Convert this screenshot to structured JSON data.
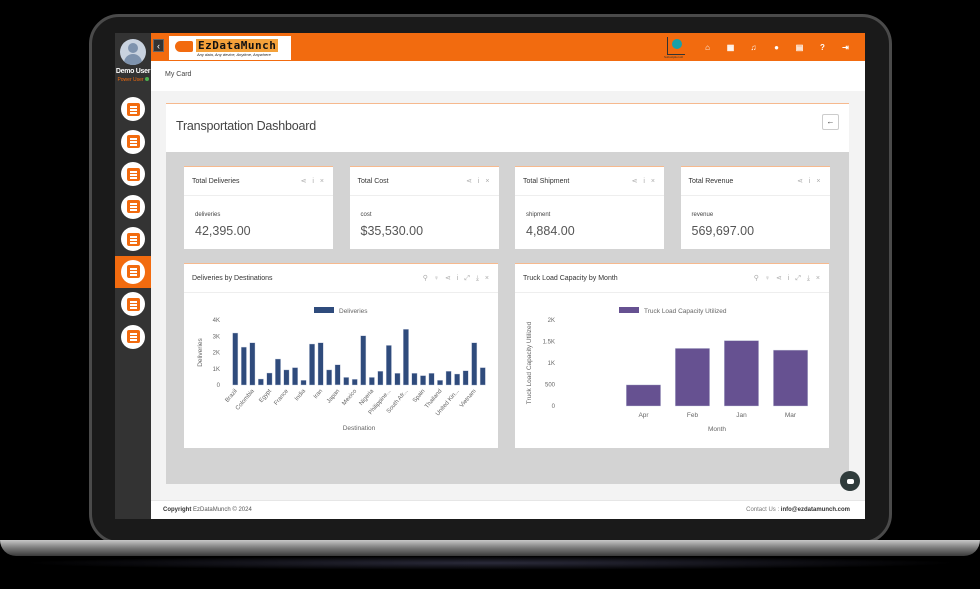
{
  "user": {
    "name": "Demo User",
    "role": "Power User",
    "status_color": "#4caf50"
  },
  "brand": {
    "logo_word": "EzDataMunch",
    "tagline": "Any data, Any device, Anytime, Anywhere",
    "accent": "#f26b0f",
    "partner_logo_text": "Subsciption AI"
  },
  "sidebar": {
    "items": [
      {
        "name": "sidebar-item-data-sources",
        "icon": "database-icon",
        "active": false
      },
      {
        "name": "sidebar-item-analysis",
        "icon": "magnifier-chart-icon",
        "active": false
      },
      {
        "name": "sidebar-item-reports",
        "icon": "report-grid-icon",
        "active": false
      },
      {
        "name": "sidebar-item-designer",
        "icon": "layout-icon",
        "active": false
      },
      {
        "name": "sidebar-item-tables",
        "icon": "table-icon",
        "active": false
      },
      {
        "name": "sidebar-item-dashboards",
        "icon": "monitor-chart-icon",
        "active": true
      },
      {
        "name": "sidebar-item-documents",
        "icon": "document-chart-icon",
        "active": false
      },
      {
        "name": "sidebar-item-integration",
        "icon": "network-icon",
        "active": false
      }
    ]
  },
  "header": {
    "toggle_label": "‹",
    "icons": [
      {
        "name": "home-icon",
        "glyph": "⌂"
      },
      {
        "name": "grid-icon",
        "glyph": "▦"
      },
      {
        "name": "bell-icon",
        "glyph": "♫"
      },
      {
        "name": "globe-icon",
        "glyph": "●"
      },
      {
        "name": "card-icon",
        "glyph": "▤"
      },
      {
        "name": "help-icon",
        "glyph": "?"
      },
      {
        "name": "logout-icon",
        "glyph": "⇥"
      }
    ]
  },
  "breadcrumb": "My Card",
  "page": {
    "title": "Transportation Dashboard",
    "back_label": "←"
  },
  "kpis": [
    {
      "title": "Total Deliveries",
      "label": "deliveries",
      "value": "42,395.00"
    },
    {
      "title": "Total Cost",
      "label": "cost",
      "value": "$35,530.00"
    },
    {
      "title": "Total Shipment",
      "label": "shipment",
      "value": "4,884.00"
    },
    {
      "title": "Total Revenue",
      "label": "revenue",
      "value": "569,697.00"
    }
  ],
  "kpi_tools": "⋖ i ×",
  "chart_tools": "⚲ ♀ ⋖ i ⤢ ⤓ ×",
  "chart_data": [
    {
      "type": "bar",
      "title": "Deliveries by Destinations",
      "xlabel": "Destination",
      "ylabel": "Deliveries",
      "legend": [
        "Deliveries"
      ],
      "color": "#2f4b7c",
      "ylim": [
        0,
        4000
      ],
      "yticks": [
        "0",
        "1K",
        "2K",
        "3K",
        "4K"
      ],
      "categories": [
        "Brazil",
        "",
        "Colombia",
        "",
        "Egypt",
        "",
        "France",
        "",
        "India",
        "",
        "Iran",
        "",
        "Japan",
        "",
        "Mexico",
        "",
        "Nigeria",
        "",
        "Philippine...",
        "",
        "South Afr...",
        "",
        "Spain",
        "",
        "Thailand",
        "",
        "United Kin...",
        "",
        "Vietnam",
        ""
      ],
      "values": [
        3200,
        2330,
        2600,
        370,
        740,
        1600,
        930,
        1070,
        290,
        2520,
        2600,
        930,
        1240,
        470,
        350,
        3030,
        470,
        850,
        2440,
        720,
        3430,
        720,
        580,
        720,
        290,
        850,
        680,
        880,
        2600,
        1070
      ]
    },
    {
      "type": "bar",
      "title": "Truck Load Capacity by Month",
      "xlabel": "Month",
      "ylabel": "Truck Load Capacity Utilized",
      "legend": [
        "Truck Load Capacity Utilized"
      ],
      "color": "#665191",
      "ylim": [
        0,
        2000
      ],
      "yticks": [
        "0",
        "500",
        "1K",
        "1.5K",
        "2K"
      ],
      "categories": [
        "Apr",
        "Feb",
        "Jan",
        "Mar"
      ],
      "values": [
        490,
        1340,
        1520,
        1300
      ]
    }
  ],
  "footer": {
    "copyright_bold": "Copyright",
    "copyright_rest": "EzDataMunch © 2024",
    "contact_label": "Contact Us :",
    "contact_email": "info@ezdatamunch.com"
  }
}
